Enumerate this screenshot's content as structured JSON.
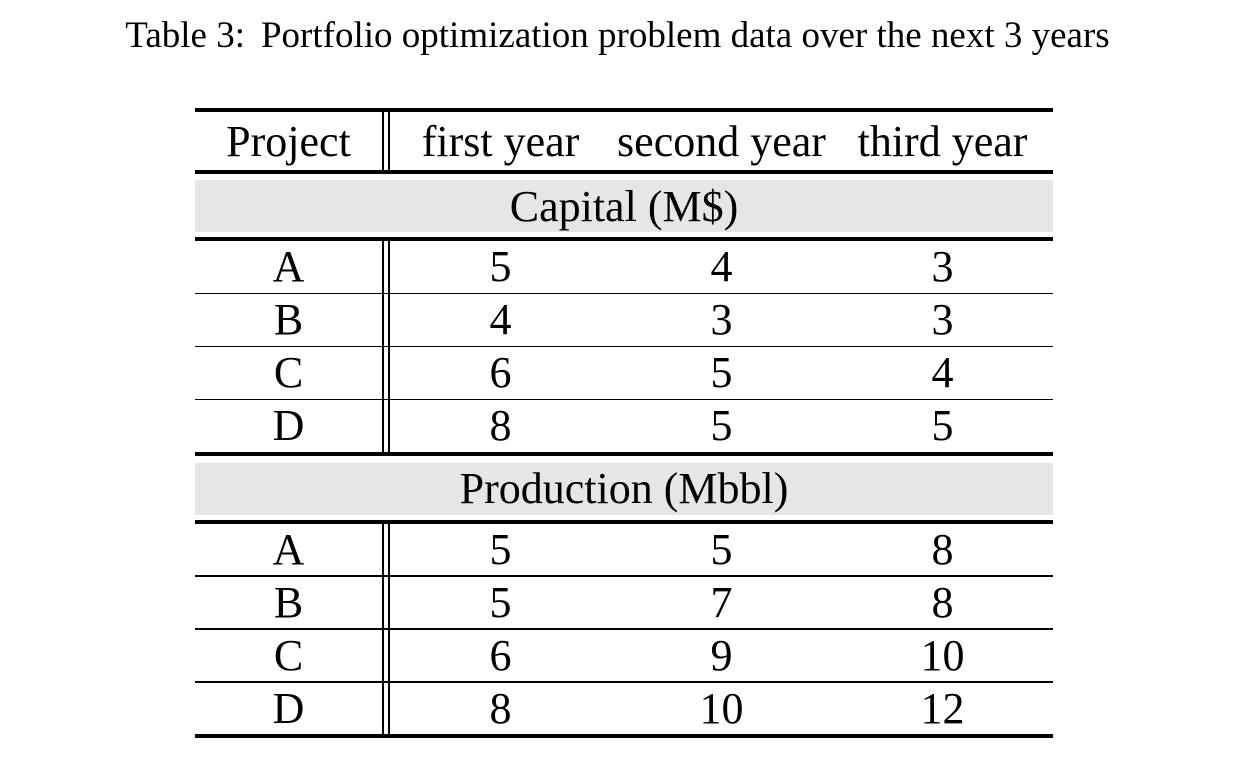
{
  "caption": {
    "label": "Table 3:",
    "text": "Portfolio optimization problem data over the next 3 years"
  },
  "table": {
    "header": {
      "project": "Project",
      "years": [
        "first year",
        "second year",
        "third year"
      ]
    },
    "sections": [
      {
        "title": "Capital (M$)",
        "rows": [
          {
            "project": "A",
            "values": [
              "5",
              "4",
              "3"
            ]
          },
          {
            "project": "B",
            "values": [
              "4",
              "3",
              "3"
            ]
          },
          {
            "project": "C",
            "values": [
              "6",
              "5",
              "4"
            ]
          },
          {
            "project": "D",
            "values": [
              "8",
              "5",
              "5"
            ]
          }
        ]
      },
      {
        "title": "Production (Mbbl)",
        "rows": [
          {
            "project": "A",
            "values": [
              "5",
              "5",
              "8"
            ]
          },
          {
            "project": "B",
            "values": [
              "5",
              "7",
              "8"
            ]
          },
          {
            "project": "C",
            "values": [
              "6",
              "9",
              "10"
            ]
          },
          {
            "project": "D",
            "values": [
              "8",
              "10",
              "12"
            ]
          }
        ]
      }
    ]
  },
  "colors": {
    "page_background": "#ffffff",
    "band_background": "#e6e6e6",
    "rule": "#000000",
    "text": "#000000"
  }
}
